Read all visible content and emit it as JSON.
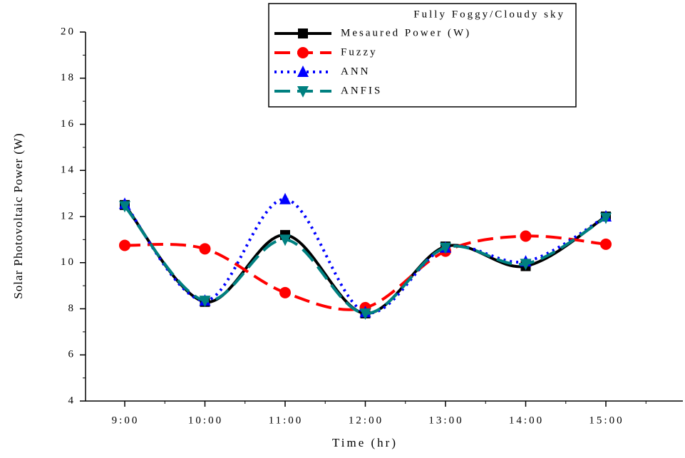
{
  "chart_data": {
    "type": "line",
    "legend_title": "Fully Foggy/Cloudy sky",
    "xlabel": "Time (hr)",
    "ylabel": "Solar Photovoltaic Power (W)",
    "categories": [
      "9:00",
      "10:00",
      "11:00",
      "12:00",
      "13:00",
      "14:00",
      "15:00"
    ],
    "series": [
      {
        "name": "Mesaured Power (W)",
        "color": "#000000",
        "dash": "solid",
        "marker": "square",
        "values": [
          12.5,
          8.3,
          11.2,
          7.8,
          10.7,
          9.85,
          12.0
        ]
      },
      {
        "name": "Fuzzy",
        "color": "#ff0000",
        "dash": "dash",
        "marker": "circle",
        "values": [
          10.75,
          10.6,
          8.7,
          8.05,
          10.5,
          11.15,
          10.8
        ]
      },
      {
        "name": "ANN",
        "color": "#0000ff",
        "dash": "dot",
        "marker": "triangle-up",
        "values": [
          12.55,
          8.35,
          12.75,
          7.85,
          10.65,
          10.05,
          12.0
        ]
      },
      {
        "name": "ANFIS",
        "color": "#008080",
        "dash": "dash",
        "marker": "triangle-down",
        "values": [
          12.45,
          8.35,
          11.0,
          7.8,
          10.65,
          9.95,
          11.95
        ]
      }
    ],
    "ylim": [
      4,
      20
    ],
    "yticks": [
      4,
      6,
      8,
      10,
      12,
      14,
      16,
      18,
      20
    ]
  }
}
